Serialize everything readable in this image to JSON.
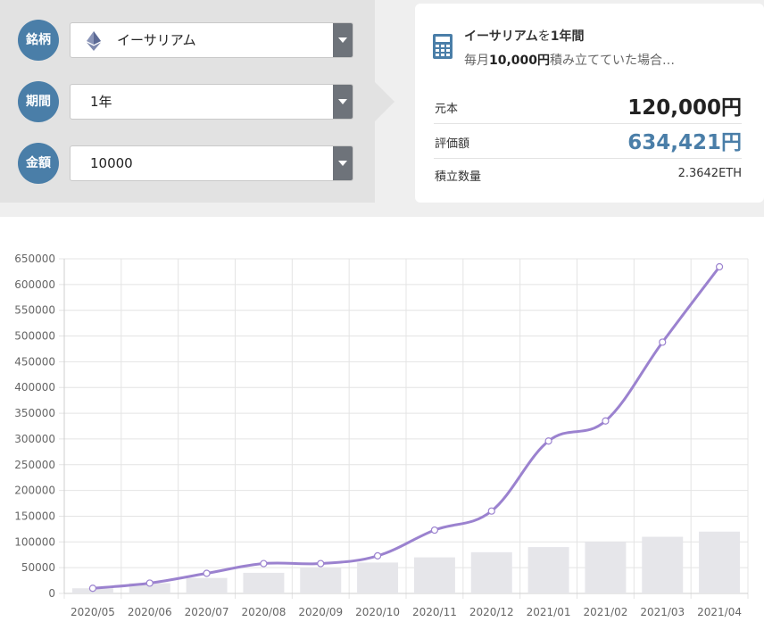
{
  "form": {
    "coin": {
      "label": "銘柄",
      "value": "イーサリアム"
    },
    "period": {
      "label": "期間",
      "value": "1年"
    },
    "amount": {
      "label": "金額",
      "value": "10000"
    }
  },
  "summary": {
    "coin_name": "イーサリアム",
    "title_mid": "を",
    "period": "1年間",
    "sub_prefix": "毎月",
    "monthly": "10,000円",
    "sub_suffix": "積み立てていた場合…",
    "principal_label": "元本",
    "principal_value": "120,000円",
    "valuation_label": "評価額",
    "valuation_value": "634,421円",
    "quantity_label": "積立数量",
    "quantity_value": "2.3642ETH"
  },
  "colors": {
    "badge": "#4a7ea8",
    "valuation": "#4a7ea8",
    "line": "#9b82cf",
    "bar": "#e6e6ea"
  },
  "chart_data": {
    "type": "bar",
    "categories": [
      "2020/05",
      "2020/06",
      "2020/07",
      "2020/08",
      "2020/09",
      "2020/10",
      "2020/11",
      "2020/12",
      "2021/01",
      "2021/02",
      "2021/03",
      "2021/04"
    ],
    "series": [
      {
        "type": "bar",
        "values": [
          10000,
          20000,
          30000,
          40000,
          50000,
          60000,
          70000,
          80000,
          90000,
          100000,
          110000,
          120000
        ]
      },
      {
        "type": "line",
        "values": [
          10000,
          20000,
          39000,
          58000,
          58000,
          73000,
          123000,
          160000,
          296000,
          335000,
          488000,
          634421
        ]
      }
    ],
    "ylim": [
      0,
      650000
    ],
    "yticks": [
      0,
      50000,
      100000,
      150000,
      200000,
      250000,
      300000,
      350000,
      400000,
      450000,
      500000,
      550000,
      600000,
      650000
    ],
    "grid": true
  }
}
